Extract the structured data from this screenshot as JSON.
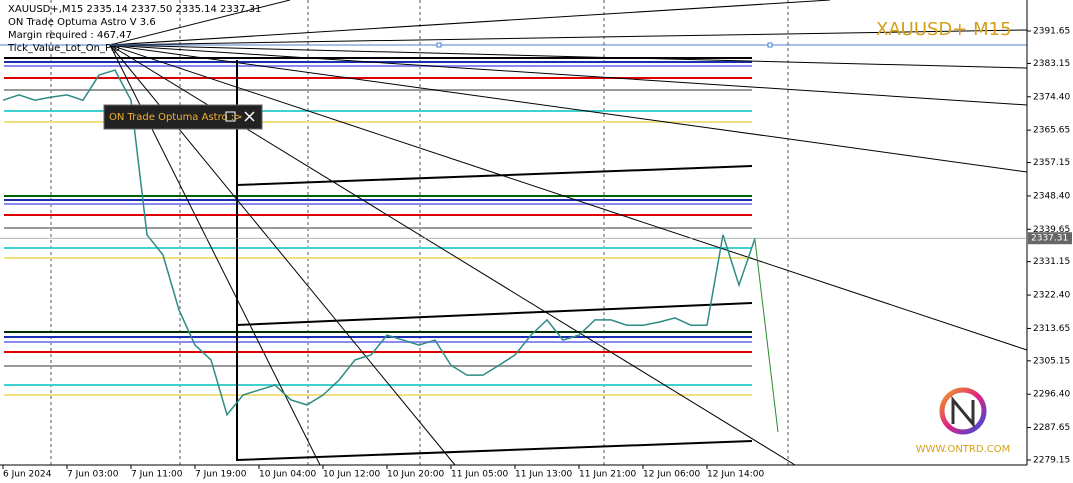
{
  "chart_data": {
    "type": "line",
    "title": "XAUUSD+ M15",
    "header_lines": [
      "XAUUSD+,M15  2335.14 2337.50 2335.14 2337.31",
      "ON Trade Optuma Astro  V 3.6",
      "Margin required : 467.47",
      "Tick_Value_Lot_On_Pip"
    ],
    "panel_label": "ON Trade Optuma Astro :>",
    "watermark": "WWW.ONTRD.COM",
    "categories": [
      "6 Jun 2024",
      null,
      null,
      null,
      "7 Jun 03:00",
      null,
      null,
      null,
      "7 Jun 11:00",
      null,
      null,
      null,
      "7 Jun 19:00",
      null,
      null,
      null,
      "10 Jun 04:00",
      null,
      null,
      null,
      "10 Jun 12:00",
      null,
      null,
      null,
      "10 Jun 20:00",
      null,
      null,
      null,
      "11 Jun 05:00",
      null,
      null,
      null,
      "11 Jun 13:00",
      null,
      null,
      null,
      "11 Jun 21:00",
      null,
      null,
      null,
      "12 Jun 06:00",
      null,
      null,
      null,
      "12 Jun 14:00",
      null,
      null,
      null
    ],
    "series": [
      {
        "name": "XAUUSD+",
        "color": "#2e8b84",
        "values": [
          2373.5,
          2374.9,
          2373.5,
          2374.3,
          2374.9,
          2373.5,
          2380.1,
          2381.4,
          2373.5,
          2338.2,
          2332.9,
          2318.5,
          2309.3,
          2305.4,
          2291.0,
          2296.2,
          2297.5,
          2298.8,
          2294.9,
          2293.6,
          2296.2,
          2300.1,
          2305.4,
          2306.7,
          2311.9,
          2310.6,
          2309.3,
          2310.6,
          2304.0,
          2301.4,
          2301.4,
          2304.0,
          2306.7,
          2311.9,
          2315.9,
          2310.6,
          2311.9,
          2315.9,
          2315.9,
          2314.5,
          2314.5,
          2315.3,
          2316.4,
          2314.5,
          2314.5,
          2338.2,
          2325.0,
          2337.31
        ]
      }
    ],
    "last_price": 2337.31,
    "ylim": [
      2277.84,
      2399.78
    ],
    "yticks": [
      2391.65,
      2383.15,
      {
        "value": 2374.4,
        "label": "2374.40"
      },
      2365.65,
      2357.15,
      {
        "value": 2348.4,
        "label": "2348.40"
      },
      2339.65,
      2331.15,
      {
        "value": 2322.4,
        "label": "2322.40"
      },
      2313.65,
      2305.15,
      {
        "value": 2296.4,
        "label": "2296.40"
      },
      2287.65,
      2279.15
    ]
  }
}
